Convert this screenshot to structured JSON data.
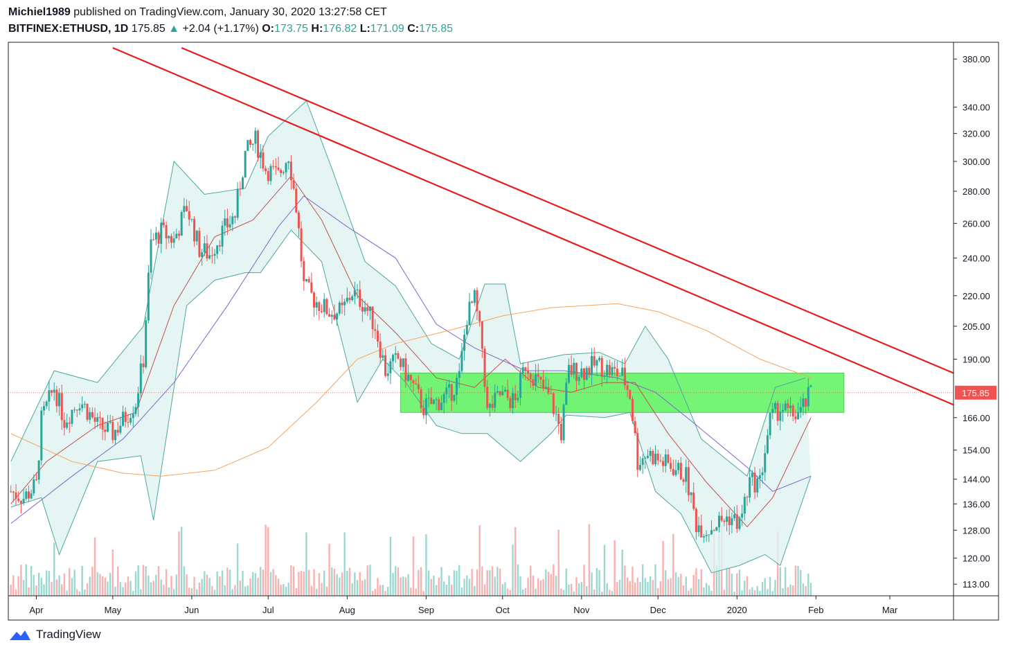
{
  "header": {
    "author": "Michiel1989",
    "published_text": " published on TradingView.com, January 30, 2020 13:27:58 CET",
    "symbol": "BITFINEX:ETHUSD, 1D",
    "last": "175.85",
    "arrow": "▲",
    "change": "+2.04 (+1.17%)",
    "o_label": "O:",
    "o_value": "173.75",
    "h_label": "H:",
    "h_value": "176.82",
    "l_label": "L:",
    "l_value": "171.09",
    "c_label": "C:",
    "c_value": "175.85"
  },
  "footer": {
    "brand": "TradingView"
  },
  "colors": {
    "up": "#26a69a",
    "down": "#ef5350",
    "trendline": "#e41e1e",
    "zone": "#5ef35e",
    "bb_fill": "#dff3f1",
    "bb_line": "#4ba89e",
    "ma_short": "#c0504d",
    "ma_mid": "#7b68c9",
    "ma_long": "#f4a460"
  },
  "chart_data": {
    "type": "candlestick",
    "title": "",
    "scale": "log",
    "ylim": [
      110,
      395
    ],
    "y_ticks": [
      "380.00",
      "340.00",
      "320.00",
      "300.00",
      "280.00",
      "260.00",
      "240.00",
      "220.00",
      "205.00",
      "190.00",
      "166.00",
      "154.00",
      "144.00",
      "136.00",
      "128.00",
      "120.00",
      "113.00"
    ],
    "x_ticks": [
      "Apr",
      "May",
      "Jun",
      "Jul",
      "Aug",
      "Sep",
      "Oct",
      "Nov",
      "Dec",
      "2020",
      "Feb",
      "Mar"
    ],
    "x_range": [
      "2019-03-21",
      "2020-03-26"
    ],
    "last_price": "175.85",
    "closes": [
      {
        "d": "2019-03-22",
        "c": 140
      },
      {
        "d": "2019-03-27",
        "c": 138
      },
      {
        "d": "2019-04-01",
        "c": 142
      },
      {
        "d": "2019-04-03",
        "c": 165
      },
      {
        "d": "2019-04-08",
        "c": 178
      },
      {
        "d": "2019-04-12",
        "c": 165
      },
      {
        "d": "2019-04-18",
        "c": 173
      },
      {
        "d": "2019-04-25",
        "c": 163
      },
      {
        "d": "2019-05-01",
        "c": 160
      },
      {
        "d": "2019-05-05",
        "c": 165
      },
      {
        "d": "2019-05-10",
        "c": 172
      },
      {
        "d": "2019-05-13",
        "c": 190
      },
      {
        "d": "2019-05-16",
        "c": 248
      },
      {
        "d": "2019-05-20",
        "c": 255
      },
      {
        "d": "2019-05-25",
        "c": 250
      },
      {
        "d": "2019-05-30",
        "c": 270
      },
      {
        "d": "2019-06-04",
        "c": 245
      },
      {
        "d": "2019-06-08",
        "c": 242
      },
      {
        "d": "2019-06-13",
        "c": 255
      },
      {
        "d": "2019-06-18",
        "c": 265
      },
      {
        "d": "2019-06-22",
        "c": 305
      },
      {
        "d": "2019-06-26",
        "c": 315
      },
      {
        "d": "2019-06-30",
        "c": 295
      },
      {
        "d": "2019-07-05",
        "c": 290
      },
      {
        "d": "2019-07-09",
        "c": 305
      },
      {
        "d": "2019-07-12",
        "c": 270
      },
      {
        "d": "2019-07-15",
        "c": 225
      },
      {
        "d": "2019-07-19",
        "c": 218
      },
      {
        "d": "2019-07-25",
        "c": 212
      },
      {
        "d": "2019-07-30",
        "c": 212
      },
      {
        "d": "2019-08-03",
        "c": 222
      },
      {
        "d": "2019-08-08",
        "c": 215
      },
      {
        "d": "2019-08-12",
        "c": 205
      },
      {
        "d": "2019-08-16",
        "c": 185
      },
      {
        "d": "2019-08-21",
        "c": 190
      },
      {
        "d": "2019-08-26",
        "c": 180
      },
      {
        "d": "2019-08-31",
        "c": 170
      },
      {
        "d": "2019-09-05",
        "c": 172
      },
      {
        "d": "2019-09-10",
        "c": 175
      },
      {
        "d": "2019-09-14",
        "c": 182
      },
      {
        "d": "2019-09-17",
        "c": 210
      },
      {
        "d": "2019-09-20",
        "c": 218
      },
      {
        "d": "2019-09-23",
        "c": 195
      },
      {
        "d": "2019-09-25",
        "c": 168
      },
      {
        "d": "2019-09-30",
        "c": 175
      },
      {
        "d": "2019-10-06",
        "c": 172
      },
      {
        "d": "2019-10-10",
        "c": 188
      },
      {
        "d": "2019-10-15",
        "c": 180
      },
      {
        "d": "2019-10-20",
        "c": 173
      },
      {
        "d": "2019-10-24",
        "c": 160
      },
      {
        "d": "2019-10-27",
        "c": 185
      },
      {
        "d": "2019-11-02",
        "c": 185
      },
      {
        "d": "2019-11-07",
        "c": 188
      },
      {
        "d": "2019-11-12",
        "c": 185
      },
      {
        "d": "2019-11-17",
        "c": 183
      },
      {
        "d": "2019-11-20",
        "c": 175
      },
      {
        "d": "2019-11-23",
        "c": 150
      },
      {
        "d": "2019-11-27",
        "c": 153
      },
      {
        "d": "2019-12-02",
        "c": 150
      },
      {
        "d": "2019-12-07",
        "c": 148
      },
      {
        "d": "2019-12-12",
        "c": 145
      },
      {
        "d": "2019-12-16",
        "c": 130
      },
      {
        "d": "2019-12-20",
        "c": 128
      },
      {
        "d": "2019-12-24",
        "c": 130
      },
      {
        "d": "2019-12-29",
        "c": 132
      },
      {
        "d": "2020-01-02",
        "c": 130
      },
      {
        "d": "2020-01-06",
        "c": 143
      },
      {
        "d": "2020-01-10",
        "c": 143
      },
      {
        "d": "2020-01-14",
        "c": 165
      },
      {
        "d": "2020-01-18",
        "c": 170
      },
      {
        "d": "2020-01-22",
        "c": 167
      },
      {
        "d": "2020-01-26",
        "c": 168
      },
      {
        "d": "2020-01-30",
        "c": 175.85
      }
    ],
    "series": [
      {
        "kind": "bollinger_upper",
        "points": [
          [
            "2019-03-22",
            150
          ],
          [
            "2019-04-08",
            185
          ],
          [
            "2019-04-25",
            180
          ],
          [
            "2019-05-13",
            205
          ],
          [
            "2019-05-25",
            300
          ],
          [
            "2019-06-06",
            278
          ],
          [
            "2019-06-22",
            282
          ],
          [
            "2019-07-01",
            318
          ],
          [
            "2019-07-16",
            345
          ],
          [
            "2019-07-26",
            295
          ],
          [
            "2019-08-08",
            238
          ],
          [
            "2019-08-20",
            225
          ],
          [
            "2019-09-03",
            197
          ],
          [
            "2019-09-14",
            190
          ],
          [
            "2019-09-24",
            226
          ],
          [
            "2019-10-02",
            226
          ],
          [
            "2019-10-08",
            188
          ],
          [
            "2019-10-25",
            192
          ],
          [
            "2019-11-08",
            193
          ],
          [
            "2019-11-18",
            188
          ],
          [
            "2019-11-26",
            205
          ],
          [
            "2019-12-05",
            190
          ],
          [
            "2019-12-18",
            158
          ],
          [
            "2020-01-05",
            145
          ],
          [
            "2020-01-16",
            178
          ],
          [
            "2020-01-28",
            182
          ]
        ]
      },
      {
        "kind": "bollinger_lower",
        "points": [
          [
            "2019-03-22",
            135
          ],
          [
            "2019-04-03",
            138
          ],
          [
            "2019-04-10",
            121
          ],
          [
            "2019-04-25",
            150
          ],
          [
            "2019-05-12",
            152
          ],
          [
            "2019-05-17",
            131
          ],
          [
            "2019-05-30",
            215
          ],
          [
            "2019-06-10",
            228
          ],
          [
            "2019-06-22",
            232
          ],
          [
            "2019-06-28",
            232
          ],
          [
            "2019-07-10",
            256
          ],
          [
            "2019-07-22",
            238
          ],
          [
            "2019-08-05",
            172
          ],
          [
            "2019-08-15",
            190
          ],
          [
            "2019-08-24",
            180
          ],
          [
            "2019-09-05",
            163
          ],
          [
            "2019-09-15",
            160
          ],
          [
            "2019-09-25",
            160
          ],
          [
            "2019-10-08",
            150
          ],
          [
            "2019-10-20",
            160
          ],
          [
            "2019-10-26",
            167
          ],
          [
            "2019-11-10",
            166
          ],
          [
            "2019-11-20",
            168
          ],
          [
            "2019-11-30",
            140
          ],
          [
            "2019-12-10",
            133
          ],
          [
            "2019-12-22",
            116
          ],
          [
            "2020-01-02",
            118
          ],
          [
            "2020-01-12",
            121
          ],
          [
            "2020-01-18",
            118
          ],
          [
            "2020-01-30",
            145
          ]
        ]
      },
      {
        "kind": "ma_short",
        "points": [
          [
            "2019-03-22",
            136
          ],
          [
            "2019-04-05",
            150
          ],
          [
            "2019-04-25",
            163
          ],
          [
            "2019-05-10",
            168
          ],
          [
            "2019-05-25",
            215
          ],
          [
            "2019-06-10",
            252
          ],
          [
            "2019-06-25",
            262
          ],
          [
            "2019-07-10",
            290
          ],
          [
            "2019-07-22",
            262
          ],
          [
            "2019-08-05",
            220
          ],
          [
            "2019-08-20",
            202
          ],
          [
            "2019-09-05",
            182
          ],
          [
            "2019-09-20",
            178
          ],
          [
            "2019-10-02",
            190
          ],
          [
            "2019-10-15",
            178
          ],
          [
            "2019-10-28",
            176
          ],
          [
            "2019-11-10",
            180
          ],
          [
            "2019-11-22",
            180
          ],
          [
            "2019-12-05",
            160
          ],
          [
            "2019-12-20",
            143
          ],
          [
            "2020-01-05",
            129
          ],
          [
            "2020-01-15",
            138
          ],
          [
            "2020-01-30",
            166
          ]
        ]
      },
      {
        "kind": "ma_mid",
        "points": [
          [
            "2019-03-22",
            130
          ],
          [
            "2019-04-15",
            145
          ],
          [
            "2019-05-05",
            158
          ],
          [
            "2019-05-25",
            180
          ],
          [
            "2019-06-15",
            215
          ],
          [
            "2019-07-05",
            258
          ],
          [
            "2019-07-15",
            277
          ],
          [
            "2019-08-01",
            258
          ],
          [
            "2019-08-20",
            240
          ],
          [
            "2019-09-05",
            206
          ],
          [
            "2019-09-20",
            195
          ],
          [
            "2019-10-10",
            185
          ],
          [
            "2019-10-25",
            185
          ],
          [
            "2019-11-15",
            182
          ],
          [
            "2019-11-30",
            176
          ],
          [
            "2019-12-15",
            164
          ],
          [
            "2020-01-05",
            148
          ],
          [
            "2020-01-15",
            140
          ],
          [
            "2020-01-30",
            145
          ]
        ]
      },
      {
        "kind": "ma_long",
        "points": [
          [
            "2019-03-22",
            160
          ],
          [
            "2019-04-15",
            150
          ],
          [
            "2019-05-05",
            146
          ],
          [
            "2019-05-20",
            145
          ],
          [
            "2019-06-10",
            147
          ],
          [
            "2019-07-01",
            155
          ],
          [
            "2019-07-20",
            172
          ],
          [
            "2019-08-05",
            190
          ],
          [
            "2019-08-20",
            197
          ],
          [
            "2019-09-10",
            203
          ],
          [
            "2019-10-01",
            210
          ],
          [
            "2019-10-20",
            214
          ],
          [
            "2019-11-15",
            216
          ],
          [
            "2019-12-01",
            212
          ],
          [
            "2019-12-20",
            203
          ],
          [
            "2020-01-10",
            190
          ],
          [
            "2020-01-30",
            182
          ]
        ]
      }
    ],
    "annotations": {
      "trendlines": [
        {
          "p1": [
            "2019-05-01",
            390
          ],
          "p2": [
            "2020-03-26",
            171
          ]
        },
        {
          "p1": [
            "2019-05-28",
            390
          ],
          "p2": [
            "2020-03-26",
            184
          ]
        }
      ],
      "zone": {
        "x": [
          "2019-08-22",
          "2020-02-12"
        ],
        "y": [
          168,
          184
        ]
      },
      "price_line": 175.85
    }
  }
}
